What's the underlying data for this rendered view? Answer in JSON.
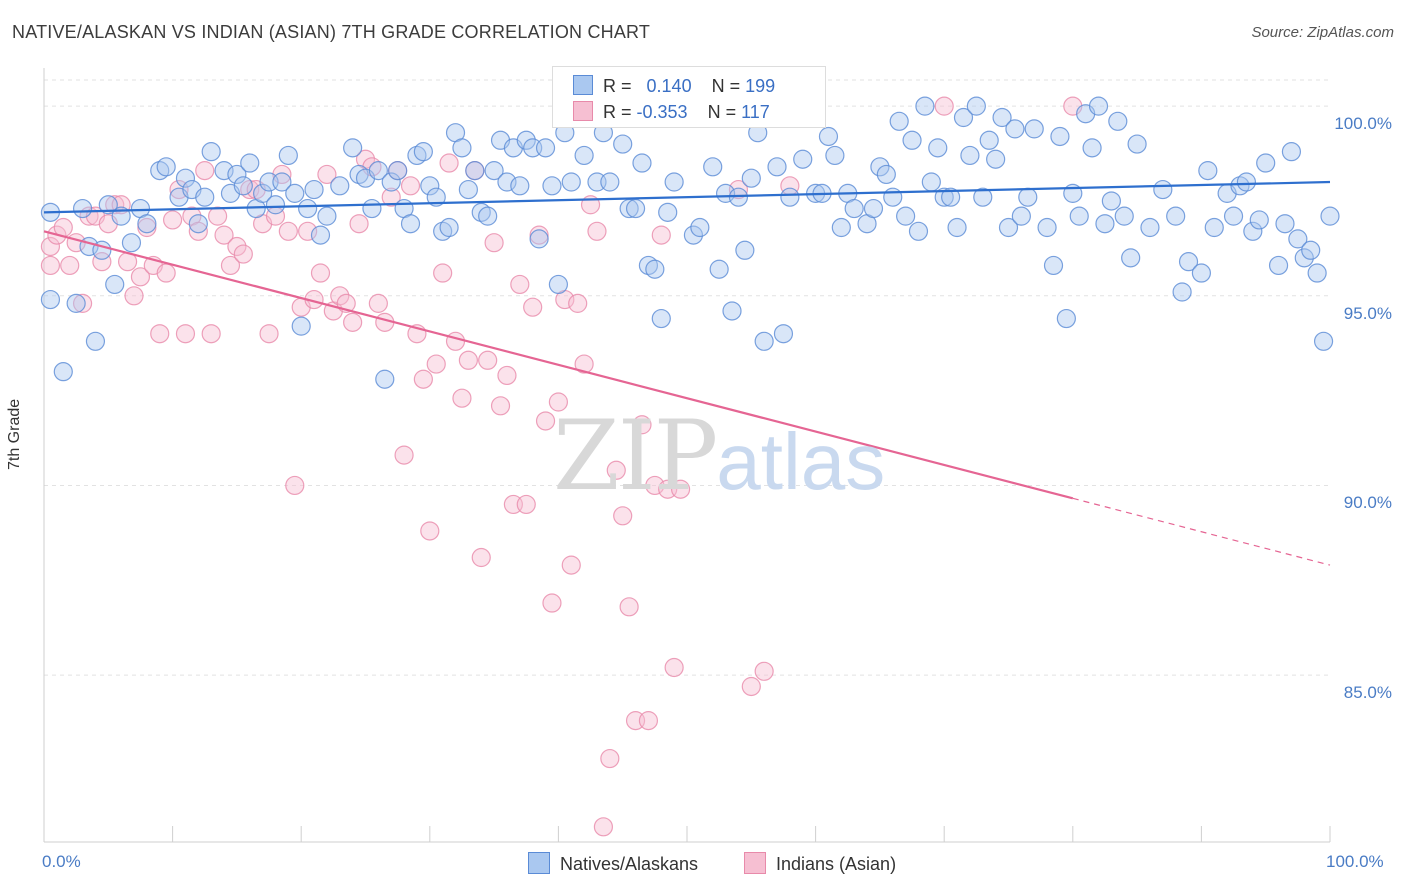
{
  "header": {
    "title": "NATIVE/ALASKAN VS INDIAN (ASIAN) 7TH GRADE CORRELATION CHART",
    "source": "Source: ZipAtlas.com"
  },
  "watermark": {
    "zip": "ZIP",
    "atlas": "atlas"
  },
  "stats": {
    "r_label": "R =",
    "n_label": "N =",
    "series": [
      {
        "r": "0.140",
        "n": "199"
      },
      {
        "r": "-0.353",
        "n": "117"
      }
    ]
  },
  "legend": {
    "items": [
      "Natives/Alaskans",
      "Indians (Asian)"
    ]
  },
  "colors": {
    "blue_fill": "#aac8f0",
    "blue_stroke": "#5a8bd6",
    "blue_line": "#2e6fce",
    "pink_fill": "#f6bfd2",
    "pink_stroke": "#e88aaa",
    "pink_line": "#e56593",
    "grid": "#e2e2e2",
    "tick_text": "#4a7cc5"
  },
  "chart_data": {
    "type": "scatter",
    "title": "NATIVE/ALASKAN VS INDIAN (ASIAN) 7TH GRADE CORRELATION CHART",
    "xlabel": "",
    "ylabel": "7th Grade",
    "xlim": [
      0,
      100
    ],
    "ylim": [
      80.6,
      100.9
    ],
    "x_tick_labels": [
      "0.0%",
      "100.0%"
    ],
    "y_ticks": [
      {
        "value": 100,
        "label": "100.0%"
      },
      {
        "value": 95,
        "label": "95.0%"
      },
      {
        "value": 90,
        "label": "90.0%"
      },
      {
        "value": 85,
        "label": "85.0%"
      }
    ],
    "grid": true,
    "legend_position": "bottom-center",
    "series": [
      {
        "name": "Natives/Alaskans",
        "r": 0.14,
        "n": 199,
        "trend": {
          "x": [
            0,
            100
          ],
          "y": [
            97.2,
            98.0
          ],
          "dashed_from": null
        },
        "points": [
          [
            0.5,
            97.2
          ],
          [
            0.5,
            94.9
          ],
          [
            1.5,
            93.0
          ],
          [
            2.5,
            94.8
          ],
          [
            3,
            97.3
          ],
          [
            3.5,
            96.3
          ],
          [
            4,
            93.8
          ],
          [
            4.5,
            96.2
          ],
          [
            5,
            97.4
          ],
          [
            5.5,
            95.3
          ],
          [
            6,
            97.1
          ],
          [
            6.8,
            96.4
          ],
          [
            7.5,
            97.3
          ],
          [
            8,
            96.9
          ],
          [
            9,
            98.3
          ],
          [
            9.5,
            98.4
          ],
          [
            10.5,
            97.6
          ],
          [
            11,
            98.1
          ],
          [
            11.5,
            97.8
          ],
          [
            12,
            96.9
          ],
          [
            12.5,
            97.6
          ],
          [
            13,
            98.8
          ],
          [
            14,
            98.3
          ],
          [
            14.5,
            97.7
          ],
          [
            15,
            98.2
          ],
          [
            15.5,
            97.9
          ],
          [
            16,
            98.5
          ],
          [
            16.5,
            97.3
          ],
          [
            17,
            97.7
          ],
          [
            17.5,
            98.0
          ],
          [
            18,
            97.4
          ],
          [
            18.5,
            98.0
          ],
          [
            19,
            98.7
          ],
          [
            19.5,
            97.7
          ],
          [
            20,
            94.2
          ],
          [
            20.5,
            97.3
          ],
          [
            21,
            97.8
          ],
          [
            21.5,
            96.6
          ],
          [
            22,
            97.1
          ],
          [
            23,
            97.9
          ],
          [
            24,
            98.9
          ],
          [
            24.5,
            98.2
          ],
          [
            25,
            98.1
          ],
          [
            25.5,
            97.3
          ],
          [
            26,
            98.3
          ],
          [
            26.5,
            92.8
          ],
          [
            27,
            98.0
          ],
          [
            27.5,
            98.3
          ],
          [
            28,
            97.3
          ],
          [
            28.5,
            96.9
          ],
          [
            29,
            98.7
          ],
          [
            29.5,
            98.8
          ],
          [
            30,
            97.9
          ],
          [
            30.5,
            97.6
          ],
          [
            31,
            96.7
          ],
          [
            31.5,
            96.8
          ],
          [
            32,
            99.3
          ],
          [
            32.5,
            98.9
          ],
          [
            33,
            97.8
          ],
          [
            33.5,
            98.3
          ],
          [
            34,
            97.2
          ],
          [
            34.5,
            97.1
          ],
          [
            35,
            98.3
          ],
          [
            35.5,
            99.1
          ],
          [
            36,
            98.0
          ],
          [
            36.5,
            98.9
          ],
          [
            37,
            97.9
          ],
          [
            37.5,
            99.1
          ],
          [
            38,
            98.9
          ],
          [
            38.5,
            96.5
          ],
          [
            39,
            98.9
          ],
          [
            39.5,
            97.9
          ],
          [
            40,
            95.3
          ],
          [
            40.5,
            99.3
          ],
          [
            41,
            98.0
          ],
          [
            42,
            98.7
          ],
          [
            43,
            98.0
          ],
          [
            43.5,
            99.3
          ],
          [
            44,
            98.0
          ],
          [
            45,
            99.0
          ],
          [
            45.5,
            97.3
          ],
          [
            46,
            97.3
          ],
          [
            46.5,
            98.5
          ],
          [
            47,
            95.8
          ],
          [
            47.5,
            95.7
          ],
          [
            48,
            94.4
          ],
          [
            48.5,
            97.2
          ],
          [
            49,
            98.0
          ],
          [
            50,
            99.7
          ],
          [
            50.5,
            96.6
          ],
          [
            51,
            96.8
          ],
          [
            52,
            98.4
          ],
          [
            52.5,
            95.7
          ],
          [
            53,
            97.7
          ],
          [
            53.5,
            94.6
          ],
          [
            54,
            97.6
          ],
          [
            54.5,
            96.2
          ],
          [
            55,
            98.1
          ],
          [
            55.5,
            99.3
          ],
          [
            56,
            93.8
          ],
          [
            57,
            98.4
          ],
          [
            57.5,
            94.0
          ],
          [
            58,
            97.6
          ],
          [
            59,
            98.6
          ],
          [
            60,
            97.7
          ],
          [
            60.5,
            97.7
          ],
          [
            61,
            99.2
          ],
          [
            61.5,
            98.7
          ],
          [
            62,
            96.8
          ],
          [
            62.5,
            97.7
          ],
          [
            63,
            97.3
          ],
          [
            64,
            96.9
          ],
          [
            64.5,
            97.3
          ],
          [
            65,
            98.4
          ],
          [
            65.5,
            98.2
          ],
          [
            66,
            97.6
          ],
          [
            66.5,
            99.6
          ],
          [
            67,
            97.1
          ],
          [
            67.5,
            99.1
          ],
          [
            68,
            96.7
          ],
          [
            68.5,
            100.0
          ],
          [
            69,
            98.0
          ],
          [
            69.5,
            98.9
          ],
          [
            70,
            97.6
          ],
          [
            70.5,
            97.6
          ],
          [
            71,
            96.8
          ],
          [
            71.5,
            99.7
          ],
          [
            72,
            98.7
          ],
          [
            72.5,
            100.0
          ],
          [
            73,
            97.6
          ],
          [
            73.5,
            99.1
          ],
          [
            74,
            98.6
          ],
          [
            74.5,
            99.7
          ],
          [
            75,
            96.8
          ],
          [
            75.5,
            99.4
          ],
          [
            76,
            97.1
          ],
          [
            76.5,
            97.6
          ],
          [
            77,
            99.4
          ],
          [
            78,
            96.8
          ],
          [
            78.5,
            95.8
          ],
          [
            79,
            99.2
          ],
          [
            79.5,
            94.4
          ],
          [
            80,
            97.7
          ],
          [
            80.5,
            97.1
          ],
          [
            81,
            99.8
          ],
          [
            81.5,
            98.9
          ],
          [
            82,
            100.0
          ],
          [
            82.5,
            96.9
          ],
          [
            83,
            97.5
          ],
          [
            83.5,
            99.6
          ],
          [
            84,
            97.1
          ],
          [
            84.5,
            96.0
          ],
          [
            85,
            99.0
          ],
          [
            86,
            96.8
          ],
          [
            87,
            97.8
          ],
          [
            88,
            97.1
          ],
          [
            88.5,
            95.1
          ],
          [
            89,
            95.9
          ],
          [
            90,
            95.6
          ],
          [
            90.5,
            98.3
          ],
          [
            91,
            96.8
          ],
          [
            92,
            97.7
          ],
          [
            92.5,
            97.1
          ],
          [
            93,
            97.9
          ],
          [
            93.5,
            98.0
          ],
          [
            94,
            96.7
          ],
          [
            94.5,
            97.0
          ],
          [
            95,
            98.5
          ],
          [
            96,
            95.8
          ],
          [
            96.5,
            96.9
          ],
          [
            97,
            98.8
          ],
          [
            97.5,
            96.5
          ],
          [
            98,
            96.0
          ],
          [
            98.5,
            96.2
          ],
          [
            99,
            95.6
          ],
          [
            99.5,
            93.8
          ],
          [
            100,
            97.1
          ]
        ]
      },
      {
        "name": "Indians (Asian)",
        "r": -0.353,
        "n": 117,
        "trend": {
          "x": [
            0,
            100
          ],
          "y": [
            96.7,
            87.9
          ],
          "dashed_from": 80
        },
        "points": [
          [
            0.5,
            96.3
          ],
          [
            0.5,
            95.8
          ],
          [
            1,
            96.6
          ],
          [
            1.5,
            96.8
          ],
          [
            2,
            95.8
          ],
          [
            2.5,
            96.4
          ],
          [
            3,
            94.8
          ],
          [
            3.5,
            97.1
          ],
          [
            4,
            97.1
          ],
          [
            4.5,
            95.9
          ],
          [
            5,
            96.9
          ],
          [
            5.5,
            97.4
          ],
          [
            6,
            97.4
          ],
          [
            6.5,
            95.9
          ],
          [
            7,
            95.0
          ],
          [
            7.5,
            95.5
          ],
          [
            8,
            96.8
          ],
          [
            8.5,
            95.8
          ],
          [
            9,
            94.0
          ],
          [
            9.5,
            95.6
          ],
          [
            10,
            97.0
          ],
          [
            10.5,
            97.8
          ],
          [
            11,
            94.0
          ],
          [
            11.5,
            97.1
          ],
          [
            12,
            96.7
          ],
          [
            12.5,
            98.3
          ],
          [
            13,
            94.0
          ],
          [
            13.5,
            97.1
          ],
          [
            14,
            96.6
          ],
          [
            14.5,
            95.8
          ],
          [
            15,
            96.3
          ],
          [
            15.5,
            96.1
          ],
          [
            16,
            97.8
          ],
          [
            16.5,
            97.8
          ],
          [
            17,
            96.9
          ],
          [
            17.5,
            94.0
          ],
          [
            18,
            97.1
          ],
          [
            18.5,
            98.2
          ],
          [
            19,
            96.7
          ],
          [
            19.5,
            90.0
          ],
          [
            20,
            94.7
          ],
          [
            20.5,
            96.7
          ],
          [
            21,
            94.9
          ],
          [
            21.5,
            95.6
          ],
          [
            22,
            98.2
          ],
          [
            22.5,
            94.6
          ],
          [
            23,
            95.0
          ],
          [
            23.5,
            94.8
          ],
          [
            24,
            94.3
          ],
          [
            24.5,
            96.9
          ],
          [
            25,
            98.6
          ],
          [
            25.5,
            98.4
          ],
          [
            26,
            94.8
          ],
          [
            26.5,
            94.3
          ],
          [
            27,
            97.6
          ],
          [
            27.5,
            98.3
          ],
          [
            28,
            90.8
          ],
          [
            28.5,
            97.9
          ],
          [
            29,
            94.0
          ],
          [
            29.5,
            92.8
          ],
          [
            30,
            88.8
          ],
          [
            30.5,
            93.2
          ],
          [
            31,
            95.6
          ],
          [
            31.5,
            98.5
          ],
          [
            32,
            93.8
          ],
          [
            32.5,
            92.3
          ],
          [
            33,
            93.3
          ],
          [
            33.5,
            98.3
          ],
          [
            34,
            88.1
          ],
          [
            34.5,
            93.3
          ],
          [
            35,
            96.4
          ],
          [
            35.5,
            92.1
          ],
          [
            36,
            92.9
          ],
          [
            36.5,
            89.5
          ],
          [
            37,
            95.3
          ],
          [
            37.5,
            89.5
          ],
          [
            38,
            94.7
          ],
          [
            38.5,
            96.6
          ],
          [
            39,
            91.7
          ],
          [
            39.5,
            86.9
          ],
          [
            40,
            92.2
          ],
          [
            40.5,
            94.9
          ],
          [
            41,
            87.9
          ],
          [
            41.5,
            94.8
          ],
          [
            42,
            93.2
          ],
          [
            42.5,
            97.4
          ],
          [
            43,
            96.7
          ],
          [
            43.5,
            81.0
          ],
          [
            44,
            82.8
          ],
          [
            44.5,
            90.4
          ],
          [
            45,
            89.2
          ],
          [
            45.5,
            86.8
          ],
          [
            46,
            83.8
          ],
          [
            46.5,
            91.6
          ],
          [
            47,
            83.8
          ],
          [
            47.5,
            90.0
          ],
          [
            48,
            96.6
          ],
          [
            48.5,
            89.9
          ],
          [
            49,
            85.2
          ],
          [
            49.5,
            89.9
          ],
          [
            50,
            100.0
          ],
          [
            52,
            100.0
          ],
          [
            54,
            97.8
          ],
          [
            55,
            84.7
          ],
          [
            56,
            85.1
          ],
          [
            58,
            97.9
          ],
          [
            70,
            100.0
          ],
          [
            80,
            100.0
          ]
        ]
      }
    ]
  }
}
